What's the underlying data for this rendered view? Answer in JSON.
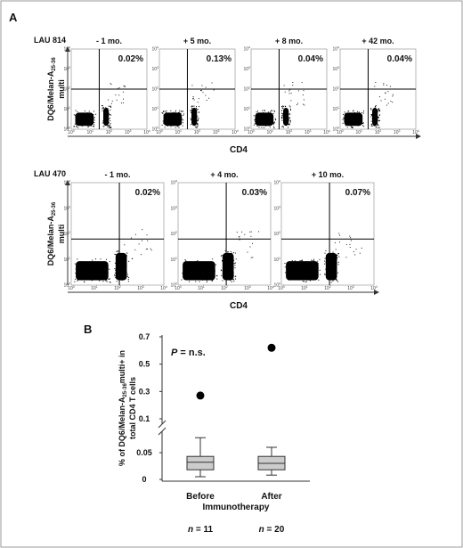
{
  "panel_a": {
    "label": "A",
    "y_axis_label": {
      "main": "DQ6/Melan-A",
      "sub": "25-36",
      "line2": "multi"
    },
    "x_axis_label": "CD4",
    "tick_base": "10",
    "tick_exponents": [
      "0",
      "1",
      "2",
      "3",
      "4"
    ],
    "patients": [
      {
        "name": "LAU 814",
        "plots": [
          {
            "time": "- 1 mo.",
            "percent": "0.02%"
          },
          {
            "time": "+ 5 mo.",
            "percent": "0.13%"
          },
          {
            "time": "+ 8 mo.",
            "percent": "0.04%"
          },
          {
            "time": "+ 42 mo.",
            "percent": "0.04%"
          }
        ]
      },
      {
        "name": "LAU 470",
        "plots": [
          {
            "time": "- 1 mo.",
            "percent": "0.02%"
          },
          {
            "time": "+ 4 mo.",
            "percent": "0.03%"
          },
          {
            "time": "+ 10 mo.",
            "percent": "0.07%"
          }
        ]
      }
    ]
  },
  "panel_b": {
    "label": "B"
  },
  "chart_data": {
    "type": "box",
    "ylabel": {
      "pre": "% of DQ6/Melan-A",
      "sub": "25-36",
      "post": "multi+ in",
      "line2": "total CD4 T cells"
    },
    "annotation": {
      "italic": "P",
      "text": " = n.s."
    },
    "categories": [
      "Before",
      "After"
    ],
    "xlabel": "Immunotherapy",
    "n_labels": [
      {
        "italic": "n",
        "text": " = 11"
      },
      {
        "italic": "n",
        "text": " = 20"
      }
    ],
    "boxes": [
      {
        "whislo": 0.005,
        "q1": 0.018,
        "med": 0.032,
        "q3": 0.043,
        "whishi": 0.078,
        "fliers": [
          0.27
        ]
      },
      {
        "whislo": 0.008,
        "q1": 0.018,
        "med": 0.03,
        "q3": 0.043,
        "whishi": 0.06,
        "fliers": [
          0.62
        ]
      }
    ],
    "color": "#cccccc",
    "y_segments": [
      [
        0,
        0.08
      ],
      [
        0.1,
        0.7
      ]
    ],
    "yticks": [
      0,
      0.05,
      0.1,
      0.3,
      0.5,
      0.7
    ]
  }
}
